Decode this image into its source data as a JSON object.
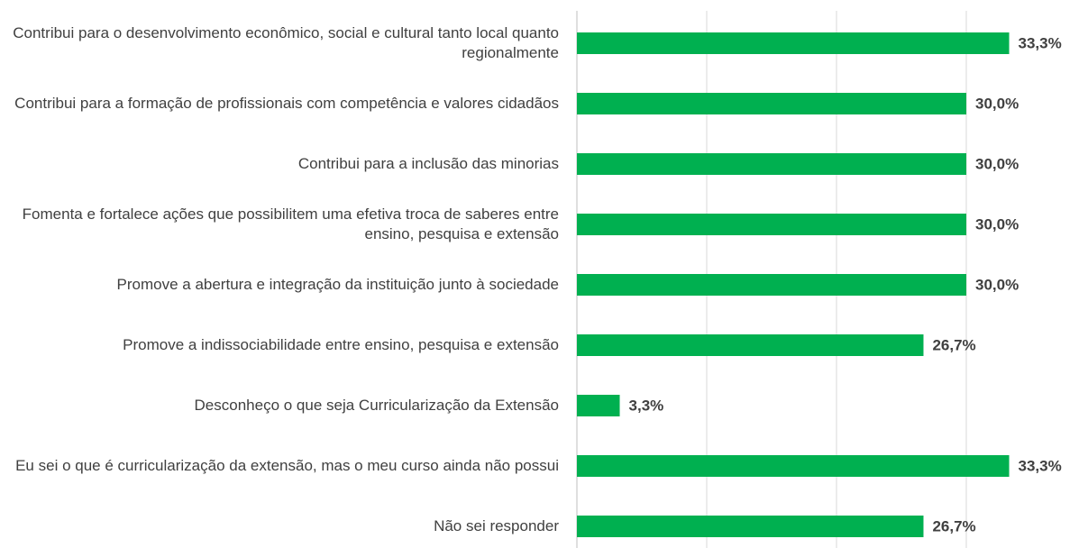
{
  "chart_data": {
    "type": "hbar",
    "categories": [
      "Contribui para o desenvolvimento econômico, social e cultural tanto local quanto regionalmente",
      "Contribui para a formação de profissionais com competência e valores cidadãos",
      "Contribui para a inclusão das minorias",
      "Fomenta e fortalece ações que possibilitem uma efetiva troca de saberes entre ensino, pesquisa e extensão",
      "Promove a abertura e integração da instituição junto à sociedade",
      "Promove a indissociabilidade entre ensino, pesquisa e extensão",
      "Desconheço o que seja Curricularização da Extensão",
      "Eu sei o que é curricularização da extensão, mas o meu curso ainda não possui",
      "Não sei responder"
    ],
    "values": [
      33.3,
      30.0,
      30.0,
      30.0,
      30.0,
      26.7,
      3.3,
      33.3,
      26.7
    ],
    "value_labels": [
      "33,3%",
      "30,0%",
      "30,0%",
      "30,0%",
      "30,0%",
      "26,7%",
      "3,3%",
      "33,3%",
      "26,7%"
    ],
    "color": "#00b050",
    "xlim": [
      0,
      39
    ],
    "xticks": [
      0,
      10,
      20,
      30
    ],
    "grid": true
  }
}
